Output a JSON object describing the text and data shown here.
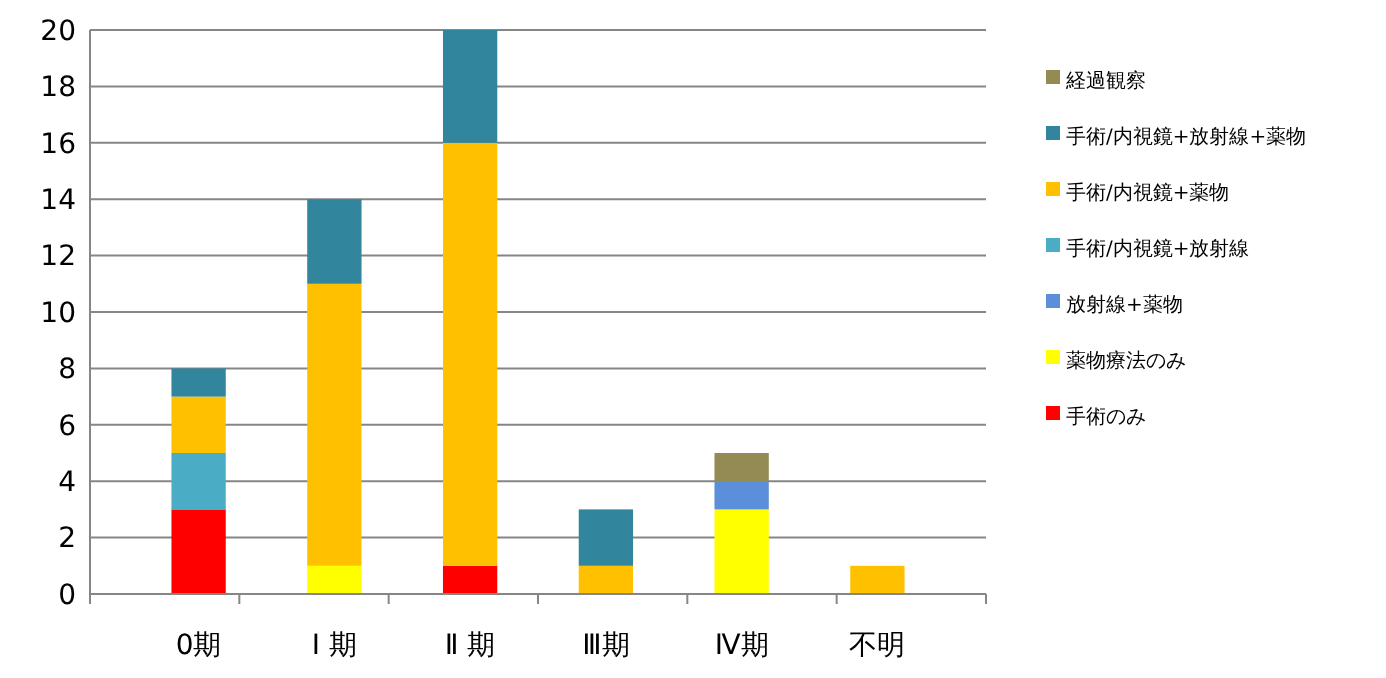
{
  "chart_data": {
    "type": "bar",
    "stacked": true,
    "categories": [
      "0期",
      "Ⅰ 期",
      "Ⅱ 期",
      "Ⅲ期",
      "Ⅳ期",
      "不明"
    ],
    "series": [
      {
        "name": "手術のみ",
        "color": "#ff0000",
        "values": [
          3,
          0,
          1,
          0,
          0,
          0
        ]
      },
      {
        "name": "薬物療法のみ",
        "color": "#ffff00",
        "values": [
          0,
          1,
          0,
          0,
          3,
          0
        ]
      },
      {
        "name": "放射線+薬物",
        "color": "#5b8fd9",
        "values": [
          0,
          0,
          0,
          0,
          1,
          0
        ]
      },
      {
        "name": "手術/内視鏡+放射線",
        "color": "#4bacc6",
        "values": [
          2,
          0,
          0,
          0,
          0,
          0
        ]
      },
      {
        "name": "手術/内視鏡+薬物",
        "color": "#ffc000",
        "values": [
          2,
          10,
          15,
          1,
          0,
          1
        ]
      },
      {
        "name": "手術/内視鏡+放射線+薬物",
        "color": "#31859c",
        "values": [
          1,
          3,
          4,
          2,
          0,
          0
        ]
      },
      {
        "name": "経過観察",
        "color": "#948a54",
        "values": [
          0,
          0,
          0,
          0,
          1,
          0
        ]
      }
    ],
    "ylim": [
      0,
      20
    ],
    "yticks": [
      0,
      2,
      4,
      6,
      8,
      10,
      12,
      14,
      16,
      18,
      20
    ],
    "grid": "y",
    "legend": "right"
  }
}
